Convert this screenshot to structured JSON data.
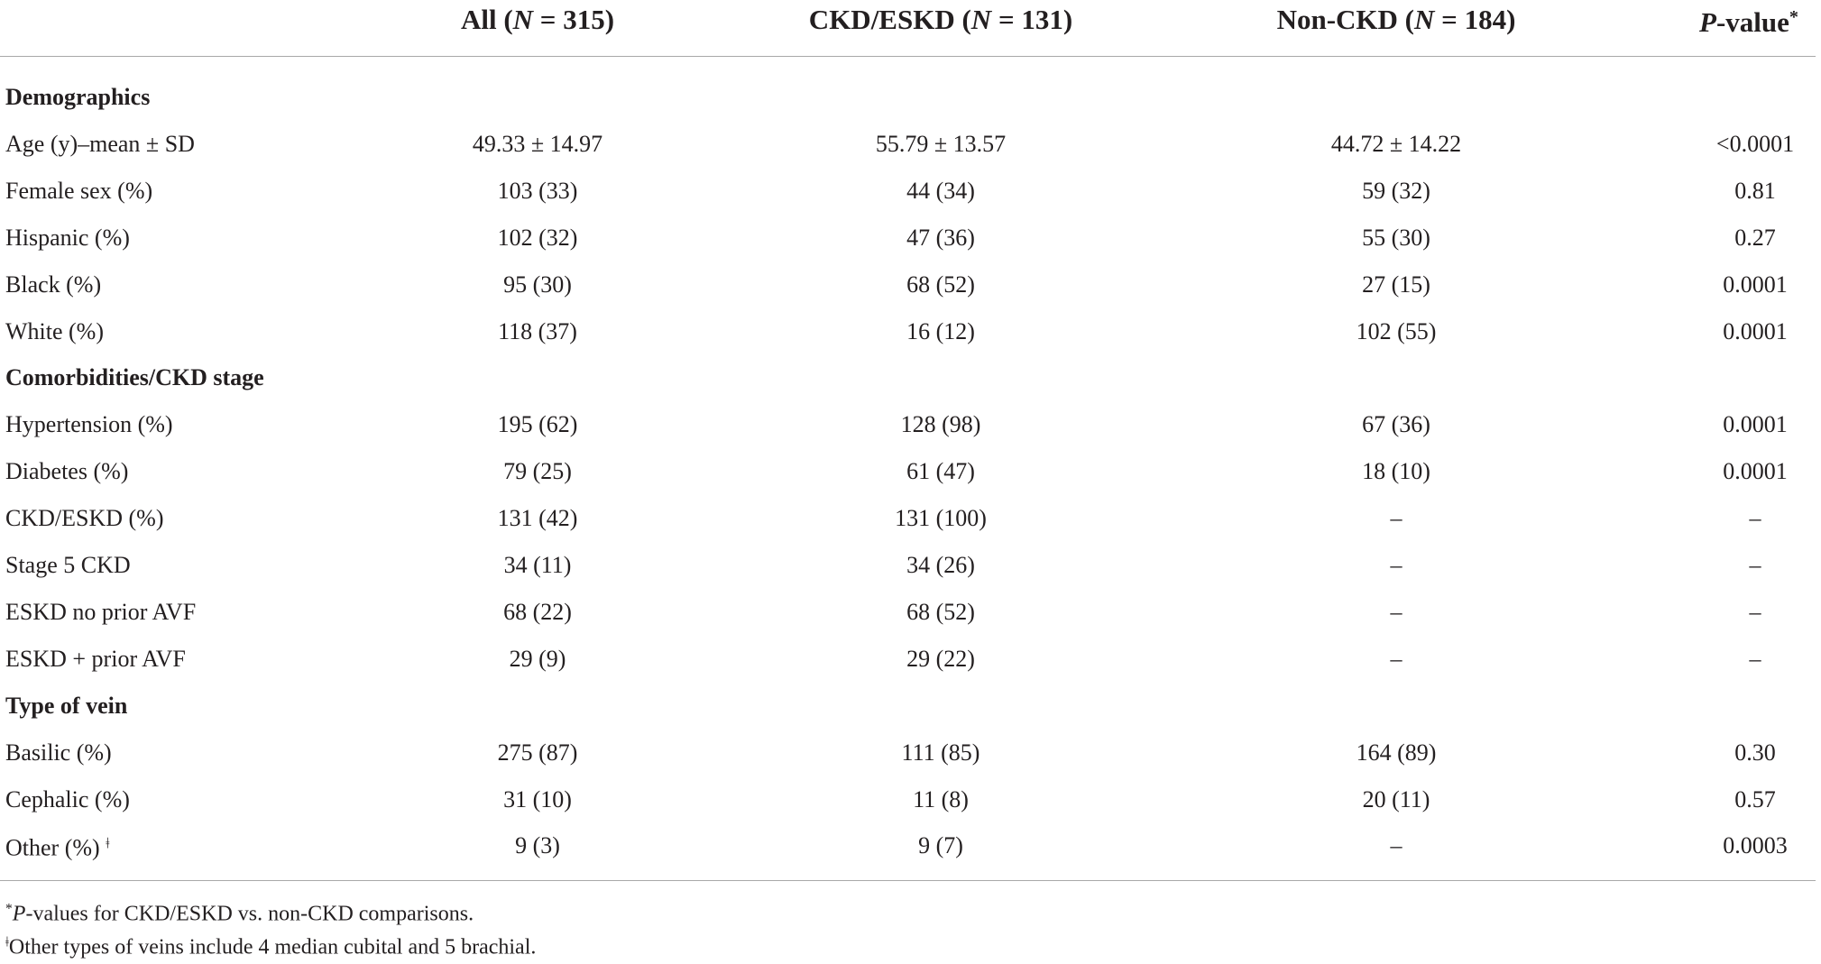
{
  "table": {
    "header": [
      [
        {
          "text": "All ("
        },
        {
          "text": "N",
          "italic": true
        },
        {
          "text": " = 315)"
        }
      ],
      [
        {
          "text": "CKD/ESKD ("
        },
        {
          "text": "N",
          "italic": true
        },
        {
          "text": " = 131)"
        }
      ],
      [
        {
          "text": "Non-CKD ("
        },
        {
          "text": "N",
          "italic": true
        },
        {
          "text": " = 184)"
        }
      ],
      [
        {
          "text": "P",
          "italic": true
        },
        {
          "text": "-value"
        },
        {
          "text": "*",
          "sup": true
        }
      ]
    ],
    "sections": [
      {
        "title": "Demographics",
        "rows": [
          {
            "label": "Age (y)–mean ± SD",
            "cells": [
              "49.33 ± 14.97",
              "55.79 ± 13.57",
              "44.72 ± 14.22",
              "<0.0001"
            ]
          },
          {
            "label": "Female sex (%)",
            "cells": [
              "103 (33)",
              "44 (34)",
              "59 (32)",
              "0.81"
            ]
          },
          {
            "label": "Hispanic (%)",
            "cells": [
              "102 (32)",
              "47 (36)",
              "55 (30)",
              "0.27"
            ]
          },
          {
            "label": "Black (%)",
            "cells": [
              "95 (30)",
              "68 (52)",
              "27 (15)",
              "0.0001"
            ]
          },
          {
            "label": "White (%)",
            "cells": [
              "118 (37)",
              "16 (12)",
              "102 (55)",
              "0.0001"
            ]
          }
        ]
      },
      {
        "title": "Comorbidities/CKD stage",
        "rows": [
          {
            "label": "Hypertension (%)",
            "cells": [
              "195 (62)",
              "128 (98)",
              "67 (36)",
              "0.0001"
            ]
          },
          {
            "label": "Diabetes (%)",
            "cells": [
              "79 (25)",
              "61 (47)",
              "18 (10)",
              "0.0001"
            ]
          },
          {
            "label": "CKD/ESKD (%)",
            "cells": [
              "131 (42)",
              "131 (100)",
              "–",
              "–"
            ]
          },
          {
            "label": "Stage 5 CKD",
            "cells": [
              "34 (11)",
              "34 (26)",
              "–",
              "–"
            ]
          },
          {
            "label": "ESKD no prior AVF",
            "cells": [
              "68 (22)",
              "68 (52)",
              "–",
              "–"
            ]
          },
          {
            "label": "ESKD + prior AVF",
            "cells": [
              "29 (9)",
              "29 (22)",
              "–",
              "–"
            ]
          }
        ]
      },
      {
        "title": "Type of vein",
        "rows": [
          {
            "label": "Basilic (%)",
            "cells": [
              "275 (87)",
              "111 (85)",
              "164 (89)",
              "0.30"
            ]
          },
          {
            "label": "Cephalic (%)",
            "cells": [
              "31 (10)",
              "11 (8)",
              "20 (11)",
              "0.57"
            ]
          },
          {
            "label": "Other (%)",
            "label_note": "ǂ",
            "cells": [
              "9 (3)",
              "9 (7)",
              "–",
              "0.0003"
            ]
          }
        ]
      }
    ],
    "footnotes": [
      [
        {
          "text": "*",
          "sup": true
        },
        {
          "text": "P",
          "italic": true
        },
        {
          "text": "-values for CKD/ESKD vs. non-CKD comparisons."
        }
      ],
      [
        {
          "text": "ǂ",
          "sup": true
        },
        {
          "text": "Other types of veins include 4 median cubital and 5 brachial."
        }
      ]
    ]
  }
}
